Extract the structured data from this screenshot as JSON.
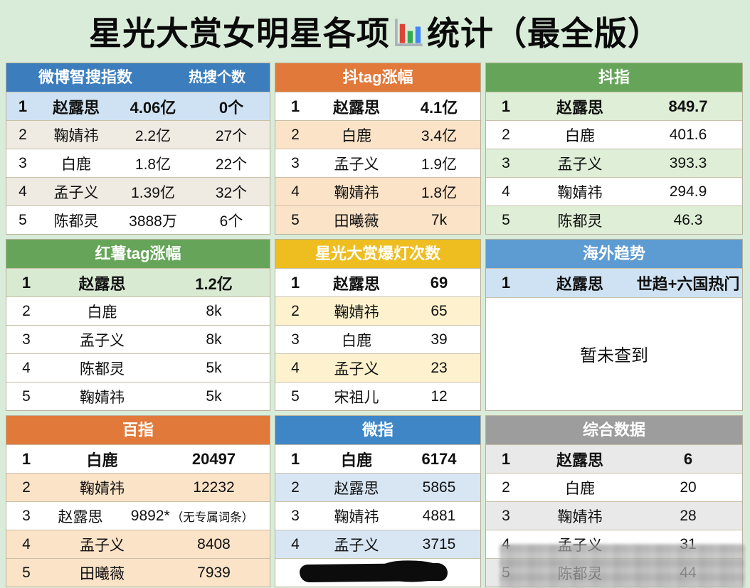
{
  "page_title": {
    "before": "星光大赏女明星各项",
    "after": "统计（最全版）",
    "icon": "bar-chart-emoji"
  },
  "colors": {
    "page_bg": "#d9ecd9",
    "title_color": "#0a0a0a"
  },
  "placeholder": {
    "overseas_empty": "暂未查到"
  },
  "chart_data": [
    {
      "type": "table",
      "key": "weibo-zhisou-index",
      "title": "微博智搜指数",
      "title_right": "热搜个数",
      "style": {
        "header_bg": "#3b7dbd",
        "header_fg": "#ffffff",
        "row_bg": [
          "#cfe2f3",
          "#efebe3",
          "#ffffff",
          "#efebe3",
          "#ffffff"
        ]
      },
      "rows": [
        {
          "rank": "1",
          "name": "赵露思",
          "value": "4.06亿",
          "extra": "0个"
        },
        {
          "rank": "2",
          "name": "鞠婧祎",
          "value": "2.2亿",
          "extra": "27个"
        },
        {
          "rank": "3",
          "name": "白鹿",
          "value": "1.8亿",
          "extra": "22个"
        },
        {
          "rank": "4",
          "name": "孟子义",
          "value": "1.39亿",
          "extra": "32个"
        },
        {
          "rank": "5",
          "name": "陈都灵",
          "value": "3888万",
          "extra": "6个"
        }
      ]
    },
    {
      "type": "table",
      "key": "douyin-tag-growth",
      "title": "抖tag涨幅",
      "style": {
        "header_bg": "#e1793a",
        "header_fg": "#ffffff",
        "row_bg": [
          "#ffffff",
          "#fbe3c8",
          "#ffffff",
          "#fbe3c8",
          "#fbe3c8"
        ]
      },
      "rows": [
        {
          "rank": "1",
          "name": "赵露思",
          "value": "4.1亿"
        },
        {
          "rank": "2",
          "name": "白鹿",
          "value": "3.4亿"
        },
        {
          "rank": "3",
          "name": "孟子义",
          "value": "1.9亿"
        },
        {
          "rank": "4",
          "name": "鞠婧祎",
          "value": "1.8亿"
        },
        {
          "rank": "5",
          "name": "田曦薇",
          "value": "7k"
        }
      ]
    },
    {
      "type": "table",
      "key": "douyin-index",
      "title": "抖指",
      "style": {
        "header_bg": "#66a559",
        "header_fg": "#ffffff",
        "row_bg": [
          "#dfeed6",
          "#ffffff",
          "#dfeed6",
          "#ffffff",
          "#dfeed6"
        ]
      },
      "rows": [
        {
          "rank": "1",
          "name": "赵露思",
          "value": "849.7"
        },
        {
          "rank": "2",
          "name": "白鹿",
          "value": "401.6"
        },
        {
          "rank": "3",
          "name": "孟子义",
          "value": "393.3"
        },
        {
          "rank": "4",
          "name": "鞠婧祎",
          "value": "294.9"
        },
        {
          "rank": "5",
          "name": "陈都灵",
          "value": "46.3"
        }
      ]
    },
    {
      "type": "table",
      "key": "hongshu-tag-growth",
      "title": "红薯tag涨幅",
      "style": {
        "header_bg": "#66a559",
        "header_fg": "#ffffff",
        "row_bg": [
          "#d9ead3",
          "#ffffff",
          "#ffffff",
          "#ffffff",
          "#ffffff"
        ]
      },
      "rows": [
        {
          "rank": "1",
          "name": "赵露思",
          "value": "1.2亿"
        },
        {
          "rank": "2",
          "name": "白鹿",
          "value": "8k"
        },
        {
          "rank": "3",
          "name": "孟子义",
          "value": "8k"
        },
        {
          "rank": "4",
          "name": "陈都灵",
          "value": "5k"
        },
        {
          "rank": "5",
          "name": "鞠婧祎",
          "value": "5k"
        }
      ]
    },
    {
      "type": "table",
      "key": "xingguang-baodeng-count",
      "title": "星光大赏爆灯次数",
      "style": {
        "header_bg": "#eebd20",
        "header_fg": "#ffffff",
        "row_bg": [
          "#ffffff",
          "#fdf2cd",
          "#ffffff",
          "#fdf2cd",
          "#ffffff"
        ]
      },
      "rows": [
        {
          "rank": "1",
          "name": "赵露思",
          "value": "69"
        },
        {
          "rank": "2",
          "name": "鞠婧祎",
          "value": "65"
        },
        {
          "rank": "3",
          "name": "白鹿",
          "value": "39"
        },
        {
          "rank": "4",
          "name": "孟子义",
          "value": "23"
        },
        {
          "rank": "5",
          "name": "宋祖儿",
          "value": "12"
        }
      ]
    },
    {
      "type": "table",
      "key": "overseas-trends",
      "title": "海外趋势",
      "style": {
        "header_bg": "#5d9bd3",
        "header_fg": "#ffffff",
        "row_bg": [
          "#cfe2f3"
        ]
      },
      "rows": [
        {
          "rank": "1",
          "name": "赵露思",
          "value": "世趋+六国热门"
        }
      ],
      "merged_note": "暂未查到"
    },
    {
      "type": "table",
      "key": "baidu-index",
      "title": "百指",
      "style": {
        "header_bg": "#e1793a",
        "header_fg": "#ffffff",
        "row_bg": [
          "#ffffff",
          "#fbe3c8",
          "#ffffff",
          "#fbe3c8",
          "#fbe3c8"
        ]
      },
      "rows": [
        {
          "rank": "1",
          "name": "白鹿",
          "value": "20497"
        },
        {
          "rank": "2",
          "name": "鞠婧祎",
          "value": "12232"
        },
        {
          "rank": "3",
          "name": "赵露思",
          "value": "9892*",
          "note": "（无专属词条）"
        },
        {
          "rank": "4",
          "name": "孟子义",
          "value": "8408"
        },
        {
          "rank": "5",
          "name": "田曦薇",
          "value": "7939"
        }
      ]
    },
    {
      "type": "table",
      "key": "weibo-index",
      "title": "微指",
      "style": {
        "header_bg": "#3e86c6",
        "header_fg": "#ffffff",
        "row_bg": [
          "#ffffff",
          "#d8e6f4",
          "#ffffff",
          "#d8e6f4",
          "#ffffff"
        ]
      },
      "rows": [
        {
          "rank": "1",
          "name": "白鹿",
          "value": "6174"
        },
        {
          "rank": "2",
          "name": "赵露思",
          "value": "5865"
        },
        {
          "rank": "3",
          "name": "鞠婧祎",
          "value": "4881"
        },
        {
          "rank": "4",
          "name": "孟子义",
          "value": "3715"
        },
        {
          "rank": "5",
          "name": "",
          "value": "",
          "redacted": true
        }
      ]
    },
    {
      "type": "table",
      "key": "composite-data",
      "title": "综合数据",
      "style": {
        "header_bg": "#9d9d9d",
        "header_fg": "#ffffff",
        "row_bg": [
          "#e9e9e9",
          "#ffffff",
          "#e9e9e9",
          "#ffffff",
          "#e9e9e9"
        ]
      },
      "rows": [
        {
          "rank": "1",
          "name": "赵露思",
          "value": "6"
        },
        {
          "rank": "2",
          "name": "白鹿",
          "value": "20"
        },
        {
          "rank": "3",
          "name": "鞠婧祎",
          "value": "28"
        },
        {
          "rank": "4",
          "name": "孟子义",
          "value": "31"
        },
        {
          "rank": "5",
          "name": "陈都灵",
          "value": "44"
        }
      ]
    }
  ]
}
